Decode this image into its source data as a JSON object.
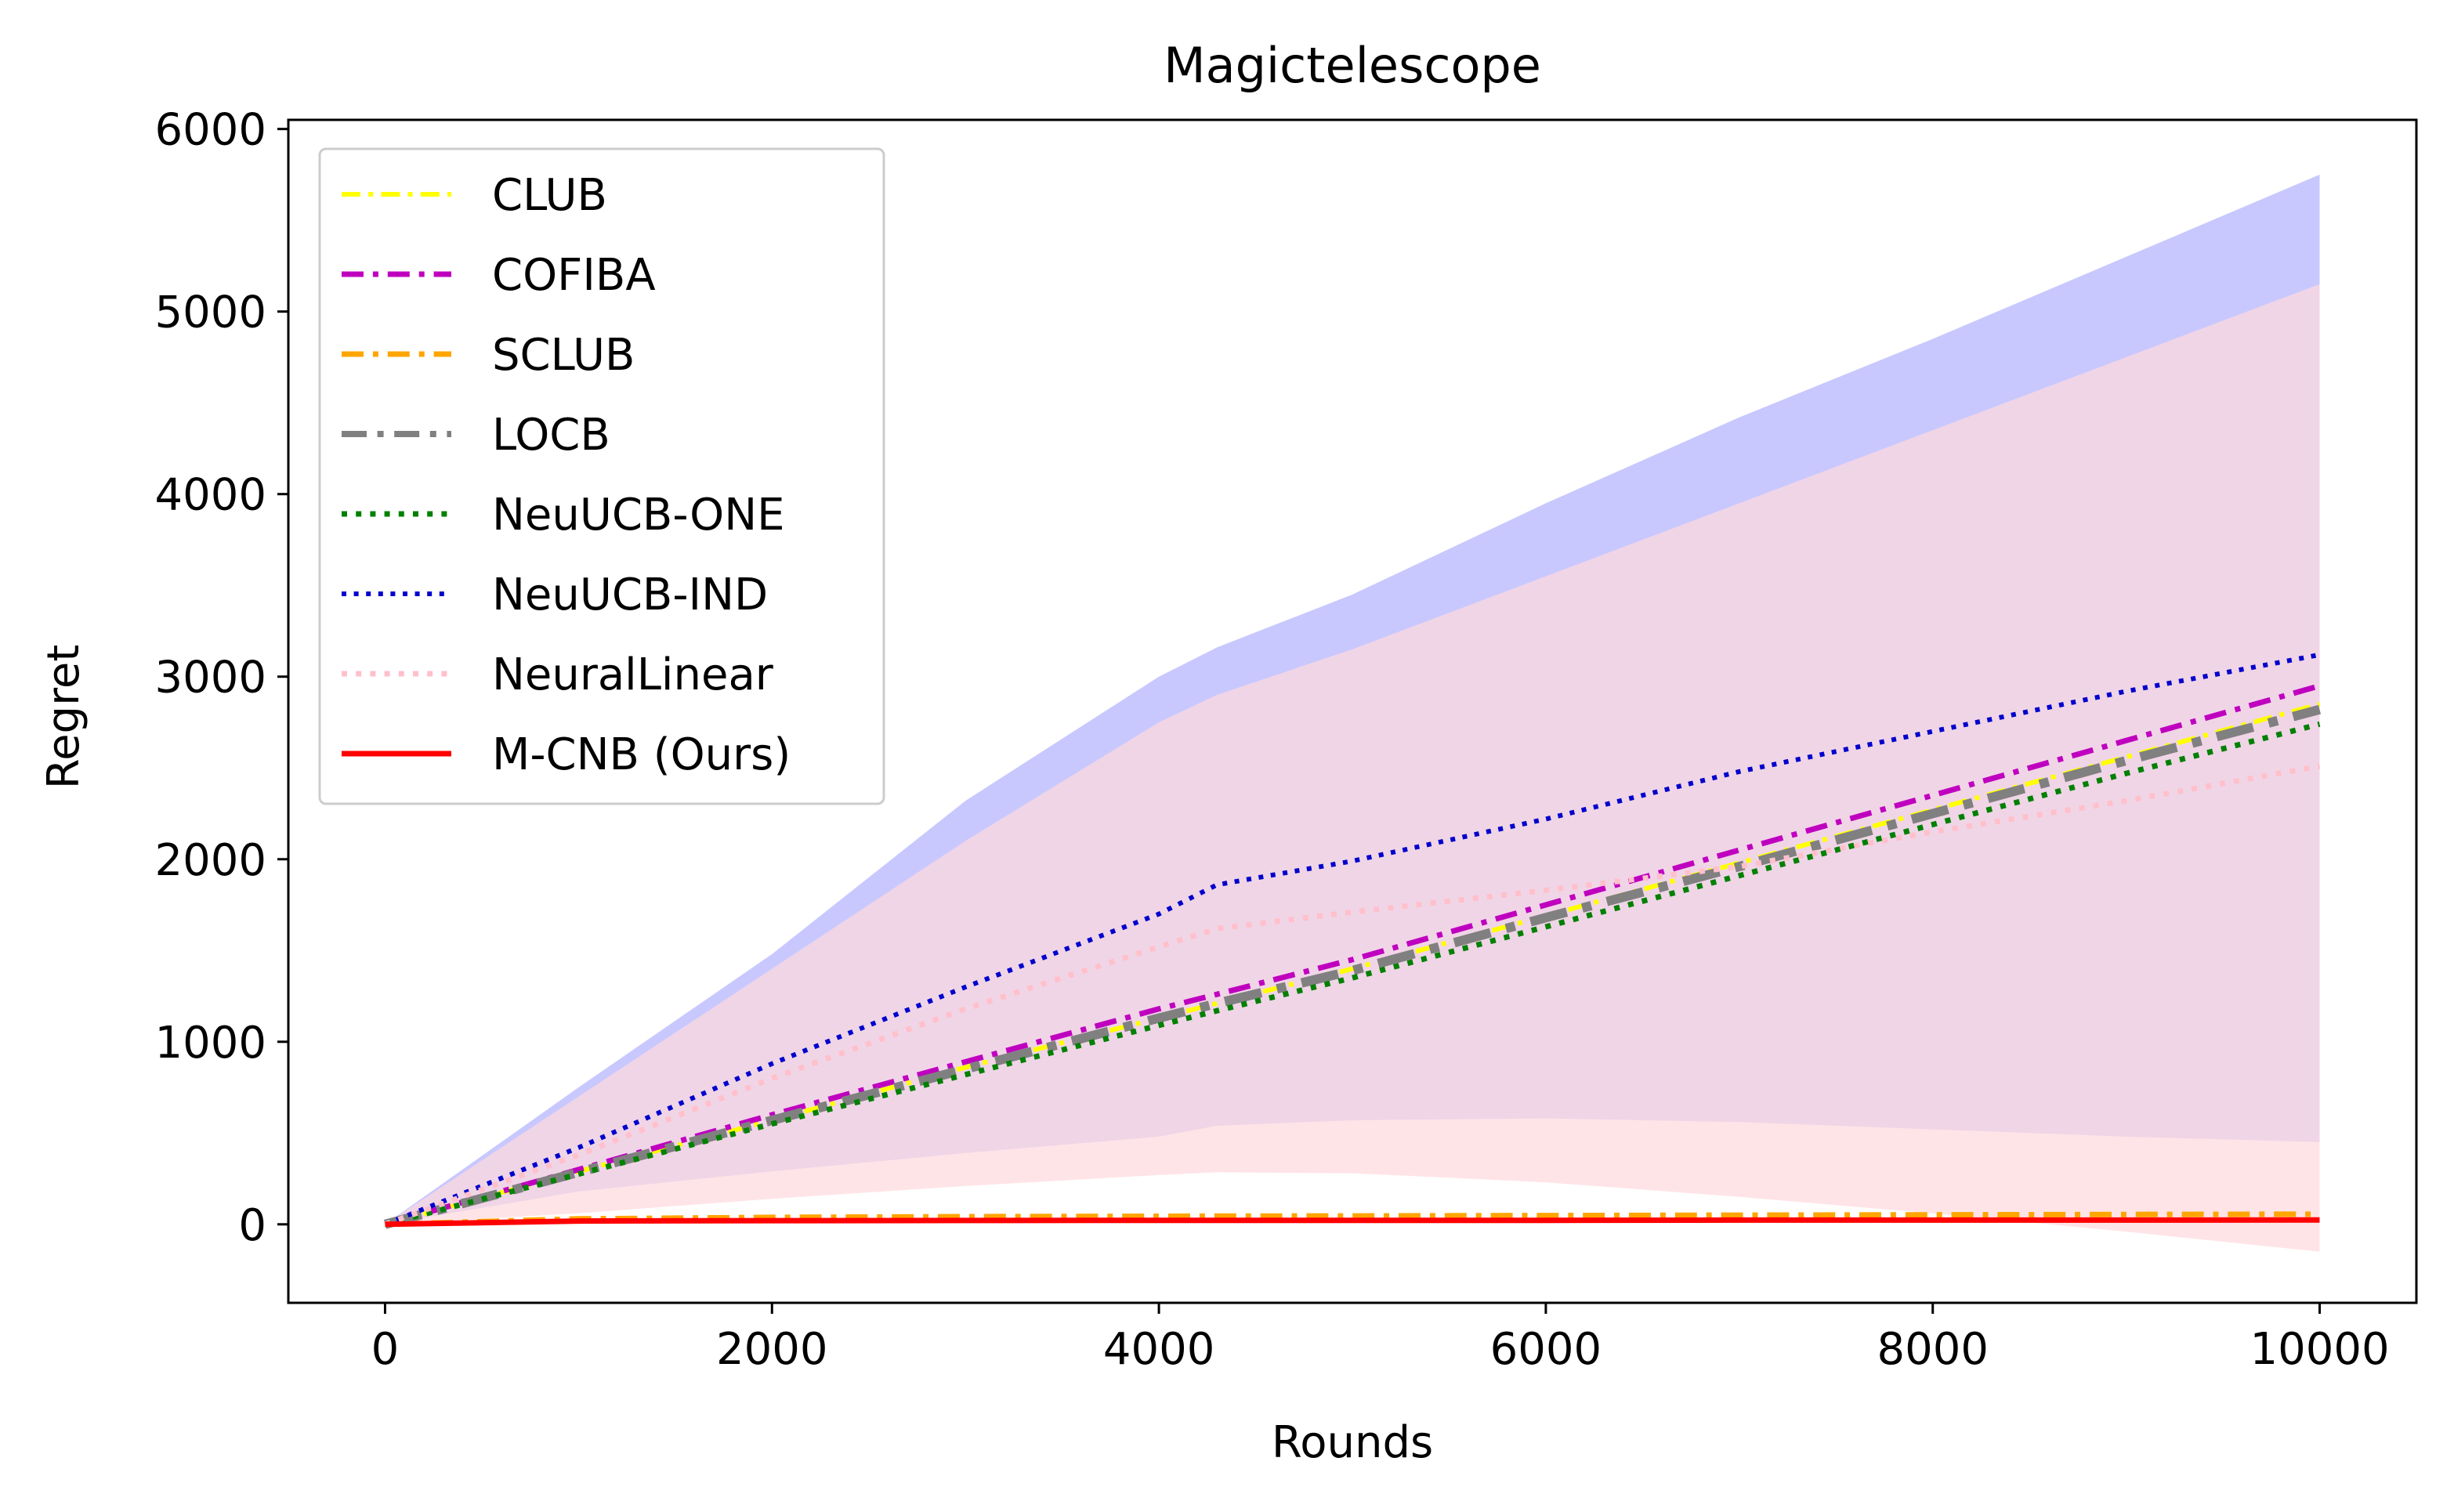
{
  "chart_data": {
    "type": "line",
    "title": "Magictelescope",
    "xlabel": "Rounds",
    "ylabel": "Regret",
    "xlim": [
      -500,
      10500
    ],
    "ylim": [
      -430,
      6050
    ],
    "xticks": [
      0,
      2000,
      4000,
      6000,
      8000,
      10000
    ],
    "yticks": [
      0,
      1000,
      2000,
      3000,
      4000,
      5000,
      6000
    ],
    "xtick_labels": [
      "0",
      "2000",
      "4000",
      "6000",
      "8000",
      "10000"
    ],
    "ytick_labels": [
      "0",
      "1000",
      "2000",
      "3000",
      "4000",
      "5000",
      "6000"
    ],
    "grid": false,
    "legend_position": "upper-left",
    "x": [
      0,
      1000,
      2000,
      3000,
      4000,
      4300,
      5000,
      6000,
      7000,
      8000,
      9000,
      10000
    ],
    "bands": [
      {
        "name": "NeuUCB-IND band",
        "color": "#b3b3ff",
        "upper": [
          0,
          750,
          1480,
          2320,
          3000,
          3160,
          3450,
          3950,
          4420,
          4850,
          5300,
          5750
        ],
        "lower": [
          0,
          180,
          290,
          390,
          480,
          540,
          570,
          580,
          560,
          520,
          480,
          450
        ]
      },
      {
        "name": "NeuralLinear band",
        "color": "#ffd9de",
        "upper": [
          0,
          700,
          1400,
          2100,
          2750,
          2900,
          3150,
          3550,
          3950,
          4350,
          4750,
          5150
        ],
        "lower": [
          0,
          60,
          140,
          210,
          270,
          285,
          280,
          230,
          150,
          60,
          -40,
          -150
        ]
      }
    ],
    "series": [
      {
        "name": "CLUB",
        "color": "#ffff00",
        "dash": "dashdot",
        "width": 6,
        "values": [
          0,
          290,
          570,
          860,
          1130,
          1210,
          1400,
          1690,
          1980,
          2270,
          2560,
          2850
        ]
      },
      {
        "name": "COFIBA",
        "color": "#bf00bf",
        "dash": "dashdot",
        "width": 7,
        "values": [
          0,
          300,
          600,
          890,
          1180,
          1260,
          1450,
          1750,
          2050,
          2350,
          2650,
          2950
        ]
      },
      {
        "name": "SCLUB",
        "color": "#ffa500",
        "dash": "dashdot",
        "width": 7,
        "values": [
          0,
          30,
          38,
          42,
          44,
          45,
          46,
          48,
          50,
          52,
          54,
          56
        ]
      },
      {
        "name": "LOCB",
        "color": "#808080",
        "dash": "dashdot",
        "width": 12,
        "values": [
          0,
          285,
          570,
          850,
          1130,
          1210,
          1390,
          1680,
          1960,
          2250,
          2540,
          2820
        ]
      },
      {
        "name": "NeuUCB-ONE",
        "color": "#008000",
        "dash": "dotted",
        "width": 7,
        "values": [
          0,
          275,
          550,
          820,
          1090,
          1170,
          1350,
          1630,
          1910,
          2190,
          2470,
          2740
        ]
      },
      {
        "name": "NeuUCB-IND",
        "color": "#0000cc",
        "dash": "dotted",
        "width": 6,
        "values": [
          0,
          420,
          880,
          1300,
          1700,
          1860,
          1990,
          2220,
          2480,
          2700,
          2920,
          3120
        ]
      },
      {
        "name": "NeuralLinear",
        "color": "#ffc0cb",
        "dash": "dotted",
        "width": 7,
        "values": [
          0,
          380,
          800,
          1180,
          1520,
          1620,
          1710,
          1830,
          1960,
          2150,
          2320,
          2510
        ]
      },
      {
        "name": "M-CNB (Ours)",
        "color": "#ff0000",
        "dash": "solid",
        "width": 7,
        "values": [
          0,
          18,
          20,
          21,
          22,
          22,
          22,
          22,
          23,
          23,
          23,
          24
        ]
      }
    ]
  }
}
